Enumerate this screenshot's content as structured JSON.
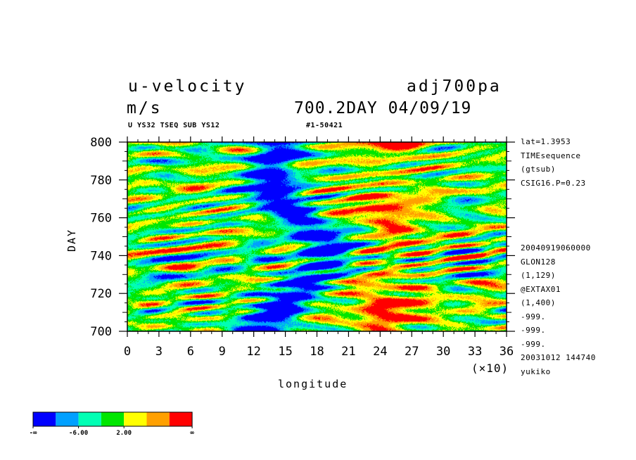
{
  "header": {
    "variable": "u-velocity",
    "dataset": "adj700pa",
    "units": "m/s",
    "time_info": "700.2DAY 04/09/19",
    "subtitle": "U YS32 TSEQ SUB YS12",
    "id_label": "#1-50421"
  },
  "side_info": {
    "top": [
      "lat=1.3953",
      "TIMEsequence",
      "(gtsub)",
      "CSIG16.P=0.23"
    ],
    "bottom": [
      "20040919060000",
      "GLON128",
      "(1,129)",
      "@EXTAX01",
      "(1,400)",
      "-999.",
      "-999.",
      "-999.",
      "20031012 144740",
      "yukiko"
    ]
  },
  "colorbar": {
    "colors": [
      "#0000ff",
      "#00a0ff",
      "#00ffb4",
      "#00e600",
      "#ffff00",
      "#ffa000",
      "#ff0000"
    ],
    "labels": [
      "-∞",
      "-6.00",
      "2.00",
      "∞"
    ]
  },
  "chart_data": {
    "type": "heatmap",
    "title": "u-velocity",
    "xlabel": "longitude",
    "ylabel": "DAY",
    "x_multiplier_label": "(×10)",
    "xlim": [
      0,
      36
    ],
    "ylim": [
      700,
      800
    ],
    "x_ticks": [
      "0",
      "3",
      "6",
      "9",
      "12",
      "15",
      "18",
      "21",
      "24",
      "27",
      "30",
      "33",
      "36"
    ],
    "y_ticks": [
      "700",
      "720",
      "740",
      "760",
      "780",
      "800"
    ]
  }
}
